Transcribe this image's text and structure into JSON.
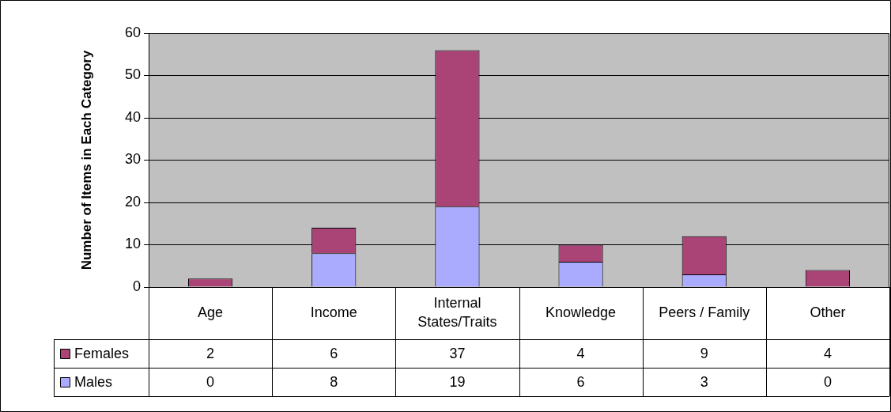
{
  "chart_data": {
    "type": "bar",
    "ylabel": "Number of Items in Each Category",
    "categories": [
      "Age",
      "Income",
      "Internal States/Traits",
      "Knowledge",
      "Peers / Family",
      "Other"
    ],
    "series": [
      {
        "name": "Males",
        "color": "#aaaaff",
        "values": [
          0,
          8,
          19,
          6,
          3,
          0
        ]
      },
      {
        "name": "Females",
        "color": "#aa4477",
        "values": [
          2,
          6,
          37,
          4,
          9,
          4
        ]
      }
    ],
    "stacked": true,
    "ylim": [
      0,
      60
    ],
    "yticks": [
      0,
      10,
      20,
      30,
      40,
      50,
      60
    ],
    "grid": "y",
    "legend": "bottom",
    "data_labels": true
  }
}
